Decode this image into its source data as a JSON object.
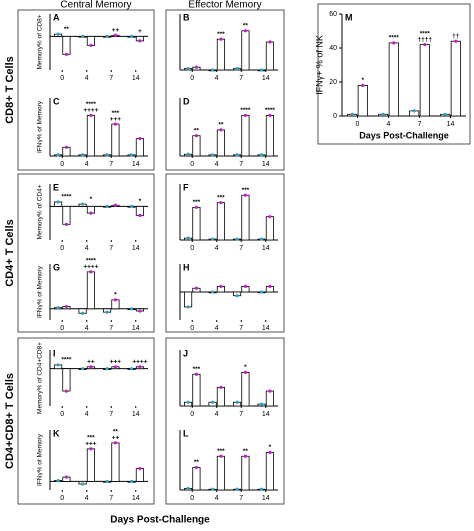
{
  "column_headers": [
    "Central Memory",
    "Effector Memory"
  ],
  "row_groups": [
    "CD8+ T Cells",
    "CD4+ T Cells",
    "CD4+CD8+ T Cells"
  ],
  "x_label": "Days Post-Challenge",
  "chart_data": [
    {
      "type": "bar",
      "panel": "A",
      "ylabel": "Memory% of CD8+",
      "categories": [
        "0",
        "4",
        "7",
        "14"
      ],
      "ylim": [
        -15,
        10
      ],
      "series": [
        {
          "color": "#2aa3c6",
          "values": [
            1,
            0,
            0,
            0
          ]
        },
        {
          "color": "#c21fc8",
          "values": [
            -8,
            -4,
            0.5,
            -2
          ]
        }
      ],
      "annotations": [
        [
          "**"
        ],
        null,
        [
          "++"
        ],
        [
          "+"
        ]
      ]
    },
    {
      "type": "bar",
      "panel": "B",
      "categories": [
        "0",
        "4",
        "7",
        "14"
      ],
      "ylim": [
        0,
        40
      ],
      "series": [
        {
          "color": "#2aa3c6",
          "values": [
            1,
            0,
            1,
            0
          ]
        },
        {
          "color": "#c21fc8",
          "values": [
            2,
            22,
            28,
            20
          ]
        }
      ],
      "annotations": [
        null,
        [
          "***"
        ],
        [
          "**"
        ],
        null
      ]
    },
    {
      "type": "bar",
      "panel": "C",
      "ylabel": "IFNγ% of Memory",
      "categories": [
        "0",
        "4",
        "7",
        "14"
      ],
      "ylim": [
        0,
        100
      ],
      "series": [
        {
          "color": "#2aa3c6",
          "values": [
            2,
            2,
            2,
            2
          ]
        },
        {
          "color": "#c21fc8",
          "values": [
            15,
            70,
            55,
            30
          ]
        }
      ],
      "annotations": [
        null,
        [
          "****",
          "++++"
        ],
        [
          "***",
          "+++"
        ],
        null
      ]
    },
    {
      "type": "bar",
      "panel": "D",
      "categories": [
        "0",
        "4",
        "7",
        "14"
      ],
      "ylim": [
        0,
        100
      ],
      "series": [
        {
          "color": "#2aa3c6",
          "values": [
            3,
            2,
            2,
            2
          ]
        },
        {
          "color": "#c21fc8",
          "values": [
            35,
            45,
            70,
            70
          ]
        }
      ],
      "annotations": [
        [
          "**"
        ],
        [
          "**"
        ],
        [
          "****"
        ],
        [
          "****"
        ]
      ]
    },
    {
      "type": "bar",
      "panel": "E",
      "ylabel": "Memory% of CD4+",
      "categories": [
        "0",
        "4",
        "7",
        "14"
      ],
      "ylim": [
        -15,
        10
      ],
      "series": [
        {
          "color": "#2aa3c6",
          "values": [
            2,
            1,
            0,
            0
          ]
        },
        {
          "color": "#c21fc8",
          "values": [
            -8,
            -3,
            0.5,
            -4
          ]
        }
      ],
      "annotations": [
        [
          "****"
        ],
        [
          "*"
        ],
        null,
        [
          "*"
        ]
      ]
    },
    {
      "type": "bar",
      "panel": "F",
      "categories": [
        "0",
        "4",
        "7",
        "14"
      ],
      "ylim": [
        0,
        60
      ],
      "series": [
        {
          "color": "#2aa3c6",
          "values": [
            2,
            1,
            1,
            1
          ]
        },
        {
          "color": "#c21fc8",
          "values": [
            35,
            40,
            48,
            25
          ]
        }
      ],
      "annotations": [
        [
          "***"
        ],
        [
          "***"
        ],
        [
          "***"
        ],
        null
      ]
    },
    {
      "type": "bar",
      "panel": "G",
      "ylabel": "IFNγ% of Memory",
      "categories": [
        "0",
        "4",
        "7",
        "14"
      ],
      "ylim": [
        -10,
        40
      ],
      "series": [
        {
          "color": "#2aa3c6",
          "values": [
            1,
            -4,
            -3,
            0
          ]
        },
        {
          "color": "#c21fc8",
          "values": [
            2,
            33,
            8,
            -2
          ]
        }
      ],
      "annotations": [
        null,
        [
          "****",
          "++++"
        ],
        [
          "*"
        ],
        null
      ]
    },
    {
      "type": "bar",
      "panel": "H",
      "categories": [
        "0",
        "4",
        "7",
        "14"
      ],
      "ylim": [
        -15,
        15
      ],
      "series": [
        {
          "color": "#2aa3c6",
          "values": [
            -8,
            0,
            -2,
            0
          ]
        },
        {
          "color": "#c21fc8",
          "values": [
            2,
            3,
            3,
            3
          ]
        }
      ],
      "annotations": [
        null,
        null,
        null,
        null
      ]
    },
    {
      "type": "bar",
      "panel": "I",
      "ylabel": "Memory% of CD4+CD8+",
      "categories": [
        "0",
        "4",
        "7",
        "14"
      ],
      "ylim": [
        -10,
        5
      ],
      "series": [
        {
          "color": "#2aa3c6",
          "values": [
            1,
            0,
            0,
            0
          ]
        },
        {
          "color": "#c21fc8",
          "values": [
            -6,
            0.5,
            0.5,
            0.5
          ]
        }
      ],
      "annotations": [
        [
          "****"
        ],
        [
          "++"
        ],
        [
          "+++"
        ],
        [
          "++++"
        ]
      ]
    },
    {
      "type": "bar",
      "panel": "J",
      "categories": [
        "0",
        "4",
        "7",
        "14"
      ],
      "ylim": [
        0,
        30
      ],
      "series": [
        {
          "color": "#2aa3c6",
          "values": [
            2,
            2,
            2,
            1
          ]
        },
        {
          "color": "#c21fc8",
          "values": [
            17,
            10,
            18,
            8
          ]
        }
      ],
      "annotations": [
        [
          "***"
        ],
        null,
        [
          "*"
        ],
        null
      ]
    },
    {
      "type": "bar",
      "panel": "K",
      "ylabel": "IFNγ% of Memory",
      "categories": [
        "0",
        "4",
        "7",
        "14"
      ],
      "ylim": [
        -10,
        60
      ],
      "series": [
        {
          "color": "#2aa3c6",
          "values": [
            1,
            -3,
            0,
            0
          ]
        },
        {
          "color": "#c21fc8",
          "values": [
            5,
            38,
            45,
            15
          ]
        }
      ],
      "annotations": [
        null,
        [
          "***",
          "+++"
        ],
        [
          "**",
          "++"
        ],
        null
      ]
    },
    {
      "type": "bar",
      "panel": "L",
      "categories": [
        "0",
        "4",
        "7",
        "14"
      ],
      "ylim": [
        0,
        80
      ],
      "series": [
        {
          "color": "#2aa3c6",
          "values": [
            2,
            1,
            1,
            1
          ]
        },
        {
          "color": "#c21fc8",
          "values": [
            30,
            45,
            45,
            50
          ]
        }
      ],
      "annotations": [
        [
          "**"
        ],
        [
          "***"
        ],
        [
          "**"
        ],
        [
          "*"
        ]
      ]
    },
    {
      "type": "bar",
      "panel": "M",
      "ylabel": "IFNγ+ % of NK",
      "xlabel": "Days Post-Challenge",
      "categories": [
        "0",
        "4",
        "7",
        "14"
      ],
      "ylim": [
        0,
        60
      ],
      "yticks": [
        0,
        20,
        40,
        60
      ],
      "series": [
        {
          "color": "#2aa3c6",
          "values": [
            1,
            1,
            3,
            1
          ]
        },
        {
          "color": "#c21fc8",
          "values": [
            18,
            43,
            42,
            44
          ]
        }
      ],
      "annotations": [
        [
          "*"
        ],
        [
          "****"
        ],
        [
          "****",
          "††††"
        ],
        [
          "††"
        ]
      ]
    }
  ]
}
